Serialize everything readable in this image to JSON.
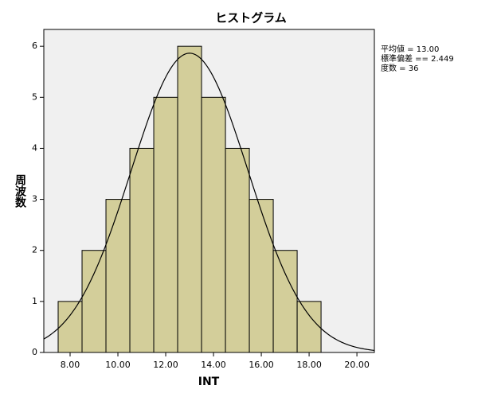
{
  "chart_data": {
    "type": "histogram",
    "title": "ヒストグラム",
    "xlabel": "INT",
    "ylabel": "周波数",
    "bins": [
      7.5,
      8.5,
      9.5,
      10.5,
      11.5,
      12.5,
      13.5,
      14.5,
      15.5,
      16.5,
      17.5,
      18.5
    ],
    "values": [
      1,
      2,
      3,
      4,
      5,
      6,
      5,
      4,
      3,
      2,
      1
    ],
    "color": "#d3ce9a",
    "xlim": [
      6.9,
      20.73
    ],
    "ylim": [
      0,
      6.33
    ],
    "xticks": [
      {
        "value": 8,
        "label": "8.00"
      },
      {
        "value": 10,
        "label": "10.00"
      },
      {
        "value": 12,
        "label": "12.00"
      },
      {
        "value": 14,
        "label": "14.00"
      },
      {
        "value": 16,
        "label": "16.00"
      },
      {
        "value": 18,
        "label": "18.00"
      },
      {
        "value": 20,
        "label": "20.00"
      }
    ],
    "yticks": [
      0,
      1,
      2,
      3,
      4,
      5,
      6
    ],
    "stats": [
      {
        "value": 13,
        "label": "平均値 = 13.00"
      },
      {
        "value": 2.449,
        "label": "標準偏差 == 2.449"
      },
      {
        "value": 36,
        "label": "度数 = 36"
      }
    ]
  }
}
